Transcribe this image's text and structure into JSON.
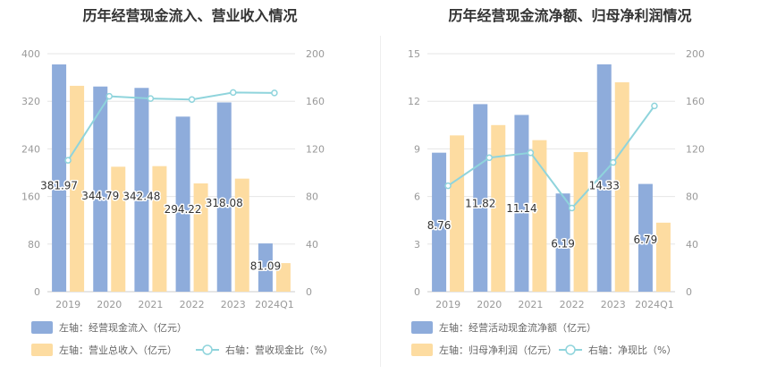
{
  "chart_data": [
    {
      "type": "bar",
      "title": "历年经营现金流入、营业收入情况",
      "categories": [
        "2019",
        "2020",
        "2021",
        "2022",
        "2023",
        "2024Q1"
      ],
      "series": [
        {
          "name": "左轴：经营现金流入（亿元）",
          "type": "bar",
          "axis": "left",
          "color": "#8eacdb",
          "values": [
            381.97,
            344.79,
            342.48,
            294.22,
            318.08,
            81.09
          ],
          "labels": [
            "381.97",
            "344.79",
            "342.48",
            "294.22",
            "318.08",
            "81.09"
          ]
        },
        {
          "name": "左轴：营业总收入（亿元）",
          "type": "bar",
          "axis": "left",
          "color": "#fddca1",
          "values": [
            346,
            210,
            211,
            182,
            190,
            48
          ]
        },
        {
          "name": "右轴：营收现金比（%）",
          "type": "line",
          "axis": "right",
          "color": "#8fd4dc",
          "values": [
            110.4,
            164.2,
            162.3,
            161.5,
            167.4,
            167.0
          ]
        }
      ],
      "left_axis": {
        "ticks": [
          "0",
          "80",
          "160",
          "240",
          "320",
          "400"
        ],
        "ylim": [
          0,
          400
        ]
      },
      "right_axis": {
        "ticks": [
          "0",
          "40",
          "80",
          "120",
          "160",
          "200"
        ],
        "ylim": [
          0,
          200
        ]
      },
      "grid": true,
      "legend_position": "bottom-left"
    },
    {
      "type": "bar",
      "title": "历年经营现金流净额、归母净利润情况",
      "categories": [
        "2019",
        "2020",
        "2021",
        "2022",
        "2023",
        "2024Q1"
      ],
      "series": [
        {
          "name": "左轴：经营活动现金流净额（亿元）",
          "type": "bar",
          "axis": "left",
          "color": "#8eacdb",
          "values": [
            8.76,
            11.82,
            11.14,
            6.19,
            14.33,
            6.79
          ],
          "labels": [
            "8.76",
            "11.82",
            "11.14",
            "6.19",
            "14.33",
            "6.79"
          ]
        },
        {
          "name": "左轴：归母净利润（亿元）",
          "type": "bar",
          "axis": "left",
          "color": "#fddca1",
          "values": [
            9.85,
            10.5,
            9.55,
            8.8,
            13.2,
            4.35
          ]
        },
        {
          "name": "右轴：净现比（%）",
          "type": "line",
          "axis": "right",
          "color": "#8fd4dc",
          "values": [
            89,
            112.6,
            116.7,
            70.3,
            108.6,
            156.1
          ]
        }
      ],
      "left_axis": {
        "ticks": [
          "0",
          "3",
          "6",
          "9",
          "12",
          "15"
        ],
        "ylim": [
          0,
          15
        ]
      },
      "right_axis": {
        "ticks": [
          "0",
          "40",
          "80",
          "120",
          "160",
          "200"
        ],
        "ylim": [
          0,
          200
        ]
      },
      "grid": true,
      "legend_position": "bottom-left"
    }
  ]
}
